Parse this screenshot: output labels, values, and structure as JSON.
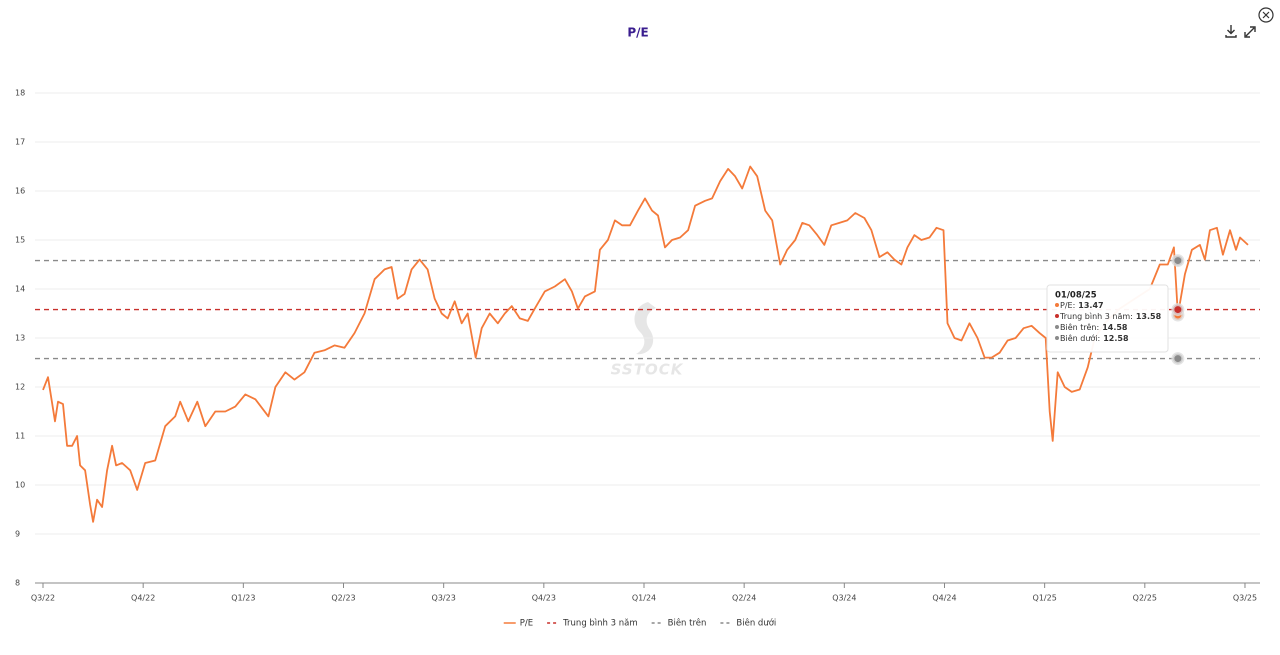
{
  "chart_data": {
    "type": "line",
    "title": "P/E",
    "watermark": "SSTOCK",
    "xlim": [
      -0.08,
      12.15
    ],
    "xticks": [
      {
        "value": 0,
        "label": "Q3/22"
      },
      {
        "value": 1,
        "label": "Q4/22"
      },
      {
        "value": 2,
        "label": "Q1/23"
      },
      {
        "value": 3,
        "label": "Q2/23"
      },
      {
        "value": 4,
        "label": "Q3/23"
      },
      {
        "value": 5,
        "label": "Q4/23"
      },
      {
        "value": 6,
        "label": "Q1/24"
      },
      {
        "value": 7,
        "label": "Q2/24"
      },
      {
        "value": 8,
        "label": "Q3/24"
      },
      {
        "value": 9,
        "label": "Q4/24"
      },
      {
        "value": 10,
        "label": "Q1/25"
      },
      {
        "value": 11,
        "label": "Q2/25"
      },
      {
        "value": 12,
        "label": "Q3/25"
      }
    ],
    "ylim": [
      8,
      18
    ],
    "yticks": [
      8,
      9,
      10,
      11,
      12,
      13,
      14,
      15,
      16,
      17,
      18
    ],
    "grid": true,
    "x": [
      0,
      0.05,
      0.12,
      0.15,
      0.2,
      0.24,
      0.29,
      0.34,
      0.37,
      0.42,
      0.47,
      0.5,
      0.54,
      0.59,
      0.64,
      0.69,
      0.73,
      0.79,
      0.87,
      0.94,
      1.02,
      1.12,
      1.22,
      1.32,
      1.37,
      1.45,
      1.54,
      1.62,
      1.72,
      1.82,
      1.92,
      2.02,
      2.12,
      2.25,
      2.32,
      2.42,
      2.51,
      2.61,
      2.71,
      2.81,
      2.91,
      3.01,
      3.11,
      3.21,
      3.31,
      3.41,
      3.48,
      3.54,
      3.61,
      3.68,
      3.76,
      3.84,
      3.91,
      3.98,
      4.04,
      4.11,
      4.18,
      4.24,
      4.32,
      4.38,
      4.46,
      4.54,
      4.61,
      4.68,
      4.76,
      4.84,
      4.91,
      5.01,
      5.11,
      5.21,
      5.28,
      5.34,
      5.41,
      5.51,
      5.56,
      5.64,
      5.71,
      5.78,
      5.86,
      5.94,
      6.01,
      6.08,
      6.14,
      6.21,
      6.28,
      6.36,
      6.44,
      6.51,
      6.61,
      6.68,
      6.76,
      6.84,
      6.91,
      6.98,
      7.06,
      7.13,
      7.21,
      7.28,
      7.36,
      7.43,
      7.51,
      7.58,
      7.65,
      7.73,
      7.8,
      7.87,
      7.95,
      8.03,
      8.11,
      8.2,
      8.27,
      8.35,
      8.43,
      8.5,
      8.57,
      8.63,
      8.7,
      8.77,
      8.85,
      8.92,
      8.99,
      9.03,
      9.1,
      9.17,
      9.25,
      9.33,
      9.4,
      9.47,
      9.55,
      9.63,
      9.71,
      9.79,
      9.87,
      9.95,
      10.01,
      10.05,
      10.08,
      10.13,
      10.2,
      10.27,
      10.35,
      10.43,
      10.5,
      10.6,
      10.75,
      10.9,
      11.05,
      11.15,
      11.23,
      11.29,
      11.33,
      11.4,
      11.47,
      11.55,
      11.6,
      11.65,
      11.72,
      11.78,
      11.85,
      11.91,
      11.95,
      12.03
    ],
    "series": [
      {
        "name": "P/E",
        "color": "#f47a3a",
        "values": [
          11.94,
          12.2,
          11.3,
          11.7,
          11.65,
          10.8,
          10.8,
          11.0,
          10.4,
          10.3,
          9.6,
          9.25,
          9.7,
          9.55,
          10.3,
          10.8,
          10.4,
          10.45,
          10.3,
          9.9,
          10.45,
          10.5,
          11.2,
          11.4,
          11.7,
          11.3,
          11.7,
          11.2,
          11.5,
          11.5,
          11.6,
          11.85,
          11.75,
          11.4,
          12.0,
          12.3,
          12.15,
          12.3,
          12.7,
          12.75,
          12.85,
          12.8,
          13.1,
          13.5,
          14.2,
          14.4,
          14.45,
          13.8,
          13.9,
          14.4,
          14.6,
          14.4,
          13.8,
          13.5,
          13.4,
          13.75,
          13.3,
          13.5,
          12.6,
          13.2,
          13.5,
          13.3,
          13.5,
          13.65,
          13.4,
          13.35,
          13.6,
          13.95,
          14.05,
          14.2,
          13.95,
          13.6,
          13.85,
          13.95,
          14.8,
          15.0,
          15.4,
          15.3,
          15.3,
          15.6,
          15.85,
          15.6,
          15.5,
          14.85,
          15.0,
          15.05,
          15.2,
          15.7,
          15.8,
          15.85,
          16.2,
          16.45,
          16.3,
          16.05,
          16.5,
          16.3,
          15.6,
          15.4,
          14.5,
          14.8,
          15.0,
          15.35,
          15.3,
          15.1,
          14.9,
          15.3,
          15.35,
          15.4,
          15.55,
          15.45,
          15.2,
          14.65,
          14.75,
          14.6,
          14.5,
          14.85,
          15.1,
          15.0,
          15.05,
          15.25,
          15.2,
          13.3,
          13.0,
          12.95,
          13.3,
          13.0,
          12.6,
          12.6,
          12.7,
          12.95,
          13.0,
          13.2,
          13.25,
          13.1,
          13.0,
          11.5,
          10.9,
          12.3,
          12.0,
          11.9,
          11.95,
          12.4,
          13.0,
          13.3,
          13.6,
          13.8,
          14.0,
          14.5,
          14.5,
          14.85,
          13.47,
          14.3,
          14.8,
          14.9,
          14.6,
          15.2,
          15.25,
          14.7,
          15.2,
          14.8,
          15.05,
          14.9
        ]
      }
    ],
    "reference_lines": [
      {
        "name": "Trung bình 3 năm",
        "color": "#c8302c",
        "value": 13.58
      },
      {
        "name": "Biên trên",
        "color": "#8a8a8a",
        "value": 14.58
      },
      {
        "name": "Biên dưới",
        "color": "#8a8a8a",
        "value": 12.58
      }
    ],
    "tooltip": {
      "x": 11.33,
      "title": "01/08/25",
      "items": [
        {
          "label": "P/E:",
          "value": 13.47,
          "color": "#f47a3a"
        },
        {
          "label": "Trung bình 3 năm:",
          "value": 13.58,
          "color": "#c8302c"
        },
        {
          "label": "Biên trên:",
          "value": 14.58,
          "color": "#8a8a8a"
        },
        {
          "label": "Biên dưới:",
          "value": 12.58,
          "color": "#8a8a8a"
        }
      ]
    }
  }
}
